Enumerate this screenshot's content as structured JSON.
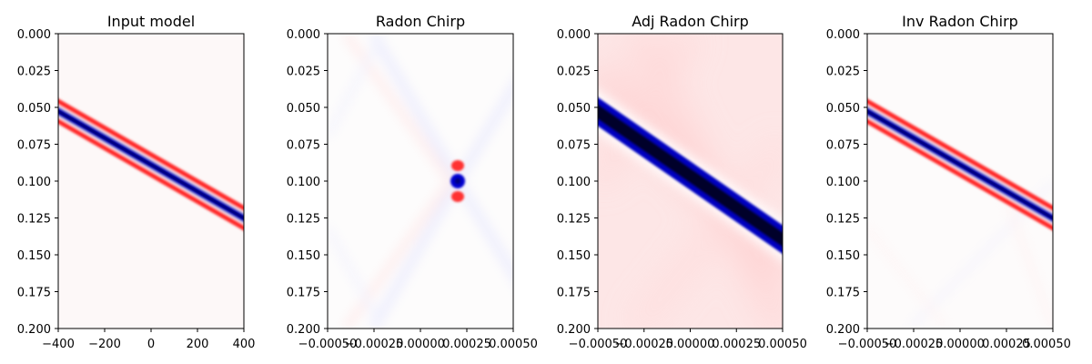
{
  "colors": {
    "positive": "#ff0000",
    "negative": "#00007f",
    "negative_core": "#000000",
    "neutral": "#ffffff",
    "axes": "#000000"
  },
  "chart_data": [
    {
      "type": "heatmap",
      "title": "Input model",
      "xlim": [
        -400,
        400
      ],
      "ylim": [
        0.2,
        0.0
      ],
      "x_tick_labels": [
        "−400",
        "−200",
        "0",
        "200",
        "400"
      ],
      "x_tick_values": [
        -400,
        -200,
        0,
        200,
        400
      ],
      "y_tick_labels": [
        "0.000",
        "0.025",
        "0.050",
        "0.075",
        "0.100",
        "0.125",
        "0.150",
        "0.175",
        "0.200"
      ],
      "y_tick_values": [
        0.0,
        0.025,
        0.05,
        0.075,
        0.1,
        0.125,
        0.15,
        0.175,
        0.2
      ],
      "colormap": "seismic",
      "features": [
        {
          "kind": "dipping-event",
          "t_at_xmin": 0.054,
          "t_at_xmax": 0.144,
          "core": "blue",
          "side_lobes": "red"
        }
      ]
    },
    {
      "type": "heatmap",
      "title": "Radon Chirp",
      "xlim": [
        -0.0005,
        0.0005
      ],
      "ylim": [
        0.2,
        0.0
      ],
      "x_tick_labels": [
        "−0.00050",
        "−0.00025",
        "0.00000",
        "0.00025",
        "0.00050"
      ],
      "x_tick_values": [
        -0.0005,
        -0.00025,
        0.0,
        0.00025,
        0.0005
      ],
      "y_tick_labels": [
        "0.000",
        "0.025",
        "0.050",
        "0.075",
        "0.100",
        "0.125",
        "0.150",
        "0.175",
        "0.200"
      ],
      "y_tick_values": [
        0.0,
        0.025,
        0.05,
        0.075,
        0.1,
        0.125,
        0.15,
        0.175,
        0.2
      ],
      "colormap": "seismic",
      "features": [
        {
          "kind": "focus-point",
          "x": 0.000225,
          "t": 0.1,
          "core": "blue",
          "side_lobes": "red"
        }
      ]
    },
    {
      "type": "heatmap",
      "title": "Adj Radon Chirp",
      "xlim": [
        -0.0005,
        0.0005
      ],
      "ylim": [
        0.2,
        0.0
      ],
      "x_tick_labels": [
        "−0.00050",
        "−0.00025",
        "0.00000",
        "0.00025",
        "0.00050"
      ],
      "x_tick_values": [
        -0.0005,
        -0.00025,
        0.0,
        0.00025,
        0.0005
      ],
      "y_tick_labels": [
        "0.000",
        "0.025",
        "0.050",
        "0.075",
        "0.100",
        "0.125",
        "0.150",
        "0.175",
        "0.200"
      ],
      "y_tick_values": [
        0.0,
        0.025,
        0.05,
        0.075,
        0.1,
        0.125,
        0.15,
        0.175,
        0.2
      ],
      "colormap": "seismic",
      "features": [
        {
          "kind": "dipping-event",
          "t_at_xmin": 0.052,
          "t_at_xmax": 0.145,
          "core": "black",
          "background": "light-red"
        }
      ]
    },
    {
      "type": "heatmap",
      "title": "Inv Radon Chirp",
      "xlim": [
        -0.0005,
        0.0005
      ],
      "ylim": [
        0.2,
        0.0
      ],
      "x_tick_labels": [
        "−0.00050",
        "−0.00025",
        "0.00000",
        "0.00025",
        "0.00050"
      ],
      "x_tick_values": [
        -0.0005,
        -0.00025,
        0.0,
        0.00025,
        0.0005
      ],
      "y_tick_labels": [
        "0.000",
        "0.025",
        "0.050",
        "0.075",
        "0.100",
        "0.125",
        "0.150",
        "0.175",
        "0.200"
      ],
      "y_tick_values": [
        0.0,
        0.025,
        0.05,
        0.075,
        0.1,
        0.125,
        0.15,
        0.175,
        0.2
      ],
      "colormap": "seismic",
      "features": [
        {
          "kind": "dipping-event",
          "t_at_xmin": 0.054,
          "t_at_xmax": 0.144,
          "core": "blue",
          "side_lobes": "red"
        }
      ]
    }
  ]
}
